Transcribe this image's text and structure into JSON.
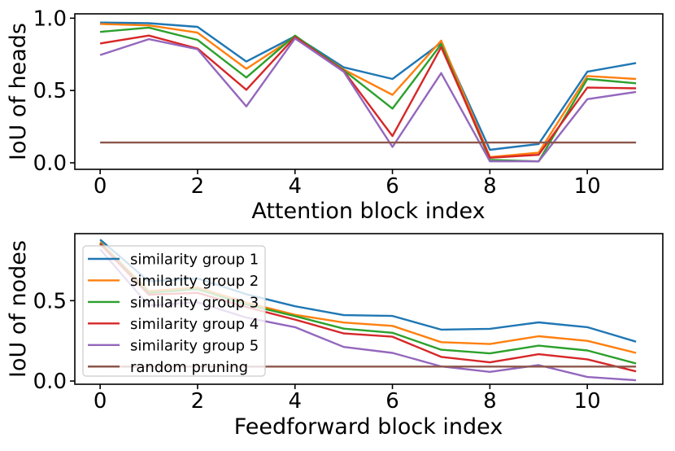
{
  "figure": {
    "background": "#ffffff"
  },
  "chart_data": [
    {
      "id": "attention",
      "type": "line",
      "title": "",
      "xlabel": "Attention block index",
      "ylabel": "IoU of heads",
      "x": [
        0,
        1,
        2,
        3,
        4,
        5,
        6,
        7,
        8,
        9,
        10,
        11
      ],
      "xticks": [
        0,
        2,
        4,
        6,
        8,
        10
      ],
      "xtick_labels": [
        "0",
        "2",
        "4",
        "6",
        "8",
        "10"
      ],
      "yticks": [
        0.0,
        0.5,
        1.0
      ],
      "ytick_labels": [
        "0.0",
        "0.5",
        "1.0"
      ],
      "xlim": [
        -0.52,
        11.55
      ],
      "ylim": [
        -0.045,
        1.03
      ],
      "grid": false,
      "legend": false,
      "series": [
        {
          "name": "similarity group 1",
          "color": "#1f77b4",
          "values": [
            0.97,
            0.965,
            0.94,
            0.7,
            0.875,
            0.66,
            0.58,
            0.83,
            0.09,
            0.13,
            0.63,
            0.69
          ]
        },
        {
          "name": "similarity group 2",
          "color": "#ff7f0e",
          "values": [
            0.96,
            0.95,
            0.9,
            0.65,
            0.87,
            0.645,
            0.47,
            0.845,
            0.04,
            0.07,
            0.6,
            0.58
          ]
        },
        {
          "name": "similarity group 3",
          "color": "#2ca02c",
          "values": [
            0.905,
            0.935,
            0.85,
            0.59,
            0.88,
            0.64,
            0.375,
            0.82,
            0.02,
            0.01,
            0.58,
            0.55
          ]
        },
        {
          "name": "similarity group 4",
          "color": "#d62728",
          "values": [
            0.825,
            0.88,
            0.79,
            0.505,
            0.87,
            0.635,
            0.185,
            0.8,
            0.035,
            0.055,
            0.52,
            0.515
          ]
        },
        {
          "name": "similarity group 5",
          "color": "#9467bd",
          "values": [
            0.745,
            0.855,
            0.785,
            0.39,
            0.86,
            0.63,
            0.11,
            0.62,
            0.01,
            0.01,
            0.44,
            0.49
          ]
        },
        {
          "name": "random pruning",
          "color": "#8c564b",
          "values": [
            0.14,
            0.14,
            0.14,
            0.14,
            0.14,
            0.14,
            0.14,
            0.14,
            0.14,
            0.14,
            0.14,
            0.14
          ]
        }
      ]
    },
    {
      "id": "feedforward",
      "type": "line",
      "title": "",
      "xlabel": "Feedforward block index",
      "ylabel": "IoU of nodes",
      "x": [
        0,
        1,
        2,
        3,
        4,
        5,
        6,
        7,
        8,
        9,
        10,
        11
      ],
      "xticks": [
        0,
        2,
        4,
        6,
        8,
        10
      ],
      "xtick_labels": [
        "0",
        "2",
        "4",
        "6",
        "8",
        "10"
      ],
      "yticks": [
        0.0,
        0.5
      ],
      "ytick_labels": [
        "0.0",
        "0.5"
      ],
      "xlim": [
        -0.52,
        11.55
      ],
      "ylim": [
        -0.02,
        0.917
      ],
      "grid": false,
      "legend": true,
      "legend_position": "upper left",
      "series": [
        {
          "name": "similarity group 1",
          "color": "#1f77b4",
          "values": [
            0.88,
            0.62,
            0.638,
            0.54,
            0.465,
            0.41,
            0.405,
            0.32,
            0.325,
            0.365,
            0.335,
            0.245
          ]
        },
        {
          "name": "similarity group 2",
          "color": "#ff7f0e",
          "values": [
            0.865,
            0.56,
            0.582,
            0.488,
            0.412,
            0.364,
            0.343,
            0.242,
            0.23,
            0.279,
            0.25,
            0.175
          ]
        },
        {
          "name": "similarity group 3",
          "color": "#2ca02c",
          "values": [
            0.858,
            0.549,
            0.571,
            0.476,
            0.404,
            0.326,
            0.3,
            0.195,
            0.172,
            0.22,
            0.19,
            0.109
          ]
        },
        {
          "name": "similarity group 4",
          "color": "#d62728",
          "values": [
            0.853,
            0.537,
            0.549,
            0.46,
            0.382,
            0.296,
            0.276,
            0.15,
            0.116,
            0.167,
            0.135,
            0.06
          ]
        },
        {
          "name": "similarity group 5",
          "color": "#9467bd",
          "values": [
            0.82,
            0.47,
            0.49,
            0.395,
            0.335,
            0.212,
            0.175,
            0.091,
            0.057,
            0.099,
            0.025,
            0.005
          ]
        },
        {
          "name": "random pruning",
          "color": "#8c564b",
          "values": [
            0.09,
            0.09,
            0.09,
            0.09,
            0.09,
            0.09,
            0.09,
            0.09,
            0.09,
            0.09,
            0.09,
            0.09
          ]
        }
      ]
    }
  ]
}
